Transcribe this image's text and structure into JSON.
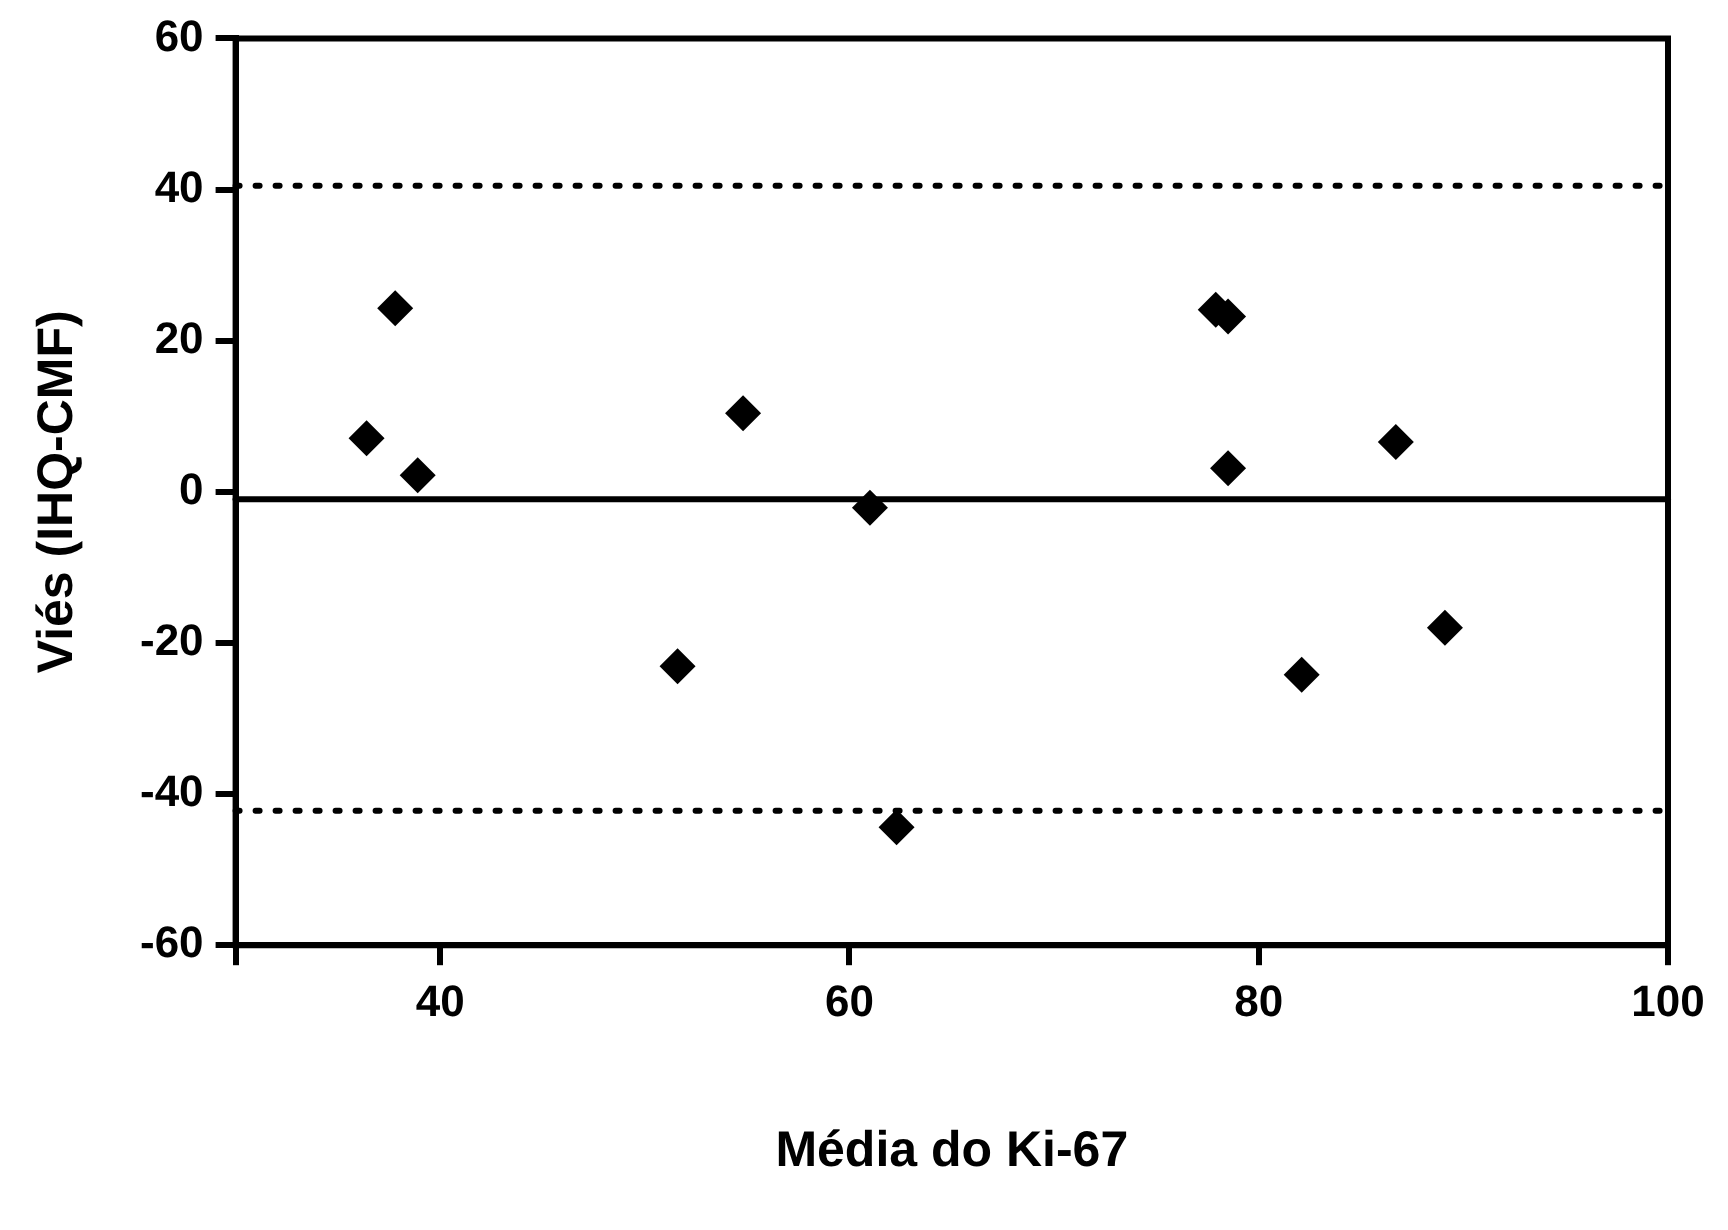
{
  "chart_data": {
    "type": "scatter",
    "xlabel": "Média do Ki-67",
    "ylabel": "Viés (IHQ-CMF)",
    "x": [
      36.4,
      37.8,
      38.9,
      51.6,
      54.8,
      61.0,
      62.3,
      77.9,
      78.5,
      78.5,
      82.1,
      86.7,
      89.1
    ],
    "values": [
      7.1,
      24.3,
      2.2,
      -23.1,
      10.4,
      -2.1,
      -44.4,
      24.1,
      23.2,
      3.1,
      -24.2,
      6.6,
      -18.0
    ],
    "color": "#000000",
    "marker": "diamond",
    "xlim": [
      30,
      100
    ],
    "xticks": [
      {
        "value": 30,
        "label": null
      },
      40,
      60,
      80,
      100
    ],
    "ylim": [
      -60,
      60
    ],
    "yticks": [
      -60,
      -40,
      -20,
      0,
      20,
      40,
      60
    ],
    "ref_lines": [
      {
        "axis": "y",
        "value": -1,
        "line_style": "solid",
        "color": "#000000"
      },
      {
        "axis": "y",
        "value": 40.5,
        "line_style": "dotted",
        "color": "#000000"
      },
      {
        "axis": "y",
        "value": -42.2,
        "line_style": "dotted",
        "color": "#000000"
      }
    ],
    "grid": false,
    "legend": false
  }
}
